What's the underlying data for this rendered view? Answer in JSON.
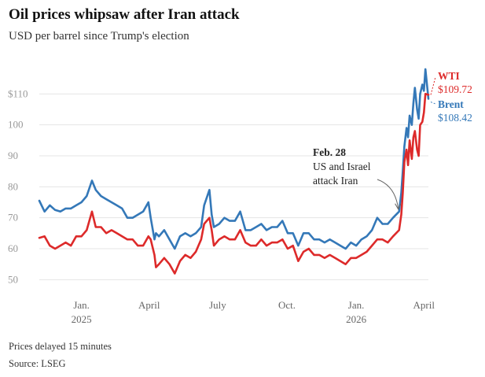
{
  "header": {
    "title": "Oil prices whipsaw after Iran attack",
    "subtitle": "USD per barrel since Trump's election"
  },
  "footer": {
    "note": "Prices delayed 15 minutes",
    "source": "Source: LSEG"
  },
  "colors": {
    "wti": "#dd2a2a",
    "brent": "#3478b8",
    "grid": "#e4e4e4"
  },
  "chart_data": {
    "type": "line",
    "title": "Oil prices whipsaw after Iran attack",
    "subtitle": "USD per barrel since Trump's election",
    "ylim": [
      45,
      120
    ],
    "y_ticks": [
      {
        "value": 50,
        "label": "50"
      },
      {
        "value": 60,
        "label": "60"
      },
      {
        "value": 70,
        "label": "70"
      },
      {
        "value": 80,
        "label": "80"
      },
      {
        "value": 90,
        "label": "90"
      },
      {
        "value": 100,
        "label": "100"
      },
      {
        "value": 110,
        "label": "$110"
      }
    ],
    "x_ticks": [
      {
        "date": "2025-01-01",
        "label": "Jan.",
        "sublabel": "2025"
      },
      {
        "date": "2025-04-01",
        "label": "April",
        "sublabel": ""
      },
      {
        "date": "2025-07-01",
        "label": "July",
        "sublabel": ""
      },
      {
        "date": "2025-10-01",
        "label": "Oct.",
        "sublabel": ""
      },
      {
        "date": "2026-01-01",
        "label": "Jan.",
        "sublabel": "2026"
      },
      {
        "date": "2026-04-01",
        "label": "April",
        "sublabel": ""
      }
    ],
    "xlim": [
      "2024-11-06",
      "2026-04-07"
    ],
    "grid": true,
    "annotations": [
      {
        "date": "2026-02-28",
        "value": 72,
        "title": "Feb. 28",
        "lines": [
          "US and Israel",
          "attack Iran"
        ]
      }
    ],
    "series": [
      {
        "name": "WTI",
        "last_label": "$109.72",
        "points": [
          [
            "2024-11-06",
            63.5
          ],
          [
            "2024-11-13",
            64
          ],
          [
            "2024-11-20",
            61
          ],
          [
            "2024-11-27",
            60
          ],
          [
            "2024-12-04",
            61
          ],
          [
            "2024-12-11",
            62
          ],
          [
            "2024-12-18",
            61
          ],
          [
            "2024-12-25",
            64
          ],
          [
            "2025-01-01",
            64
          ],
          [
            "2025-01-08",
            66
          ],
          [
            "2025-01-15",
            72
          ],
          [
            "2025-01-20",
            67
          ],
          [
            "2025-01-27",
            67
          ],
          [
            "2025-02-03",
            65
          ],
          [
            "2025-02-10",
            66
          ],
          [
            "2025-02-17",
            65
          ],
          [
            "2025-02-24",
            64
          ],
          [
            "2025-03-03",
            63
          ],
          [
            "2025-03-10",
            63
          ],
          [
            "2025-03-17",
            61
          ],
          [
            "2025-03-24",
            61
          ],
          [
            "2025-03-31",
            64
          ],
          [
            "2025-04-03",
            63
          ],
          [
            "2025-04-08",
            58
          ],
          [
            "2025-04-10",
            54
          ],
          [
            "2025-04-14",
            55
          ],
          [
            "2025-04-21",
            57
          ],
          [
            "2025-04-28",
            55
          ],
          [
            "2025-05-05",
            52
          ],
          [
            "2025-05-12",
            56
          ],
          [
            "2025-05-19",
            58
          ],
          [
            "2025-05-26",
            57
          ],
          [
            "2025-06-02",
            59
          ],
          [
            "2025-06-09",
            63
          ],
          [
            "2025-06-13",
            68
          ],
          [
            "2025-06-20",
            70
          ],
          [
            "2025-06-23",
            66
          ],
          [
            "2025-06-26",
            61
          ],
          [
            "2025-07-03",
            63
          ],
          [
            "2025-07-10",
            64
          ],
          [
            "2025-07-17",
            63
          ],
          [
            "2025-07-24",
            63
          ],
          [
            "2025-07-31",
            66
          ],
          [
            "2025-08-07",
            62
          ],
          [
            "2025-08-14",
            61
          ],
          [
            "2025-08-21",
            61
          ],
          [
            "2025-08-28",
            63
          ],
          [
            "2025-09-04",
            61
          ],
          [
            "2025-09-11",
            62
          ],
          [
            "2025-09-18",
            62
          ],
          [
            "2025-09-25",
            63
          ],
          [
            "2025-10-02",
            60
          ],
          [
            "2025-10-09",
            61
          ],
          [
            "2025-10-16",
            56
          ],
          [
            "2025-10-23",
            59
          ],
          [
            "2025-10-30",
            60
          ],
          [
            "2025-11-06",
            58
          ],
          [
            "2025-11-13",
            58
          ],
          [
            "2025-11-20",
            57
          ],
          [
            "2025-11-27",
            58
          ],
          [
            "2025-12-04",
            57
          ],
          [
            "2025-12-11",
            56
          ],
          [
            "2025-12-18",
            55
          ],
          [
            "2025-12-25",
            57
          ],
          [
            "2026-01-01",
            57
          ],
          [
            "2026-01-08",
            58
          ],
          [
            "2026-01-15",
            59
          ],
          [
            "2026-01-22",
            61
          ],
          [
            "2026-01-29",
            63
          ],
          [
            "2026-02-05",
            63
          ],
          [
            "2026-02-12",
            62
          ],
          [
            "2026-02-19",
            64
          ],
          [
            "2026-02-27",
            66
          ],
          [
            "2026-03-02",
            71
          ],
          [
            "2026-03-04",
            78
          ],
          [
            "2026-03-06",
            88
          ],
          [
            "2026-03-09",
            92
          ],
          [
            "2026-03-11",
            87
          ],
          [
            "2026-03-13",
            95
          ],
          [
            "2026-03-16",
            89
          ],
          [
            "2026-03-18",
            96
          ],
          [
            "2026-03-20",
            98
          ],
          [
            "2026-03-23",
            92
          ],
          [
            "2026-03-25",
            90
          ],
          [
            "2026-03-27",
            100
          ],
          [
            "2026-03-30",
            101
          ],
          [
            "2026-04-01",
            104
          ],
          [
            "2026-04-03",
            110
          ],
          [
            "2026-04-07",
            109.72
          ]
        ]
      },
      {
        "name": "Brent",
        "last_label": "$108.42",
        "points": [
          [
            "2024-11-06",
            75.5
          ],
          [
            "2024-11-13",
            72
          ],
          [
            "2024-11-20",
            74
          ],
          [
            "2024-11-27",
            72.5
          ],
          [
            "2024-12-04",
            72
          ],
          [
            "2024-12-11",
            73
          ],
          [
            "2024-12-18",
            73
          ],
          [
            "2024-12-25",
            74
          ],
          [
            "2025-01-01",
            75
          ],
          [
            "2025-01-08",
            77
          ],
          [
            "2025-01-15",
            82
          ],
          [
            "2025-01-20",
            79
          ],
          [
            "2025-01-27",
            77
          ],
          [
            "2025-02-03",
            76
          ],
          [
            "2025-02-10",
            75
          ],
          [
            "2025-02-17",
            74
          ],
          [
            "2025-02-24",
            73
          ],
          [
            "2025-03-03",
            70
          ],
          [
            "2025-03-10",
            70
          ],
          [
            "2025-03-17",
            71
          ],
          [
            "2025-03-24",
            72
          ],
          [
            "2025-03-31",
            75
          ],
          [
            "2025-04-03",
            70
          ],
          [
            "2025-04-08",
            63
          ],
          [
            "2025-04-10",
            65
          ],
          [
            "2025-04-14",
            64
          ],
          [
            "2025-04-21",
            66
          ],
          [
            "2025-04-28",
            63
          ],
          [
            "2025-05-05",
            60
          ],
          [
            "2025-05-12",
            64
          ],
          [
            "2025-05-19",
            65
          ],
          [
            "2025-05-26",
            64
          ],
          [
            "2025-06-02",
            65
          ],
          [
            "2025-06-09",
            67
          ],
          [
            "2025-06-13",
            74
          ],
          [
            "2025-06-20",
            79
          ],
          [
            "2025-06-23",
            71
          ],
          [
            "2025-06-26",
            67
          ],
          [
            "2025-07-03",
            68
          ],
          [
            "2025-07-10",
            70
          ],
          [
            "2025-07-17",
            69
          ],
          [
            "2025-07-24",
            69
          ],
          [
            "2025-07-31",
            72
          ],
          [
            "2025-08-07",
            66
          ],
          [
            "2025-08-14",
            66
          ],
          [
            "2025-08-21",
            67
          ],
          [
            "2025-08-28",
            68
          ],
          [
            "2025-09-04",
            66
          ],
          [
            "2025-09-11",
            67
          ],
          [
            "2025-09-18",
            67
          ],
          [
            "2025-09-25",
            69
          ],
          [
            "2025-10-02",
            65
          ],
          [
            "2025-10-09",
            65
          ],
          [
            "2025-10-16",
            61
          ],
          [
            "2025-10-23",
            65
          ],
          [
            "2025-10-30",
            65
          ],
          [
            "2025-11-06",
            63
          ],
          [
            "2025-11-13",
            63
          ],
          [
            "2025-11-20",
            62
          ],
          [
            "2025-11-27",
            63
          ],
          [
            "2025-12-04",
            62
          ],
          [
            "2025-12-11",
            61
          ],
          [
            "2025-12-18",
            60
          ],
          [
            "2025-12-25",
            62
          ],
          [
            "2026-01-01",
            61
          ],
          [
            "2026-01-08",
            63
          ],
          [
            "2026-01-15",
            64
          ],
          [
            "2026-01-22",
            66
          ],
          [
            "2026-01-29",
            70
          ],
          [
            "2026-02-05",
            68
          ],
          [
            "2026-02-12",
            68
          ],
          [
            "2026-02-19",
            70
          ],
          [
            "2026-02-27",
            72
          ],
          [
            "2026-03-02",
            78
          ],
          [
            "2026-03-04",
            85
          ],
          [
            "2026-03-06",
            93
          ],
          [
            "2026-03-09",
            99
          ],
          [
            "2026-03-11",
            96
          ],
          [
            "2026-03-13",
            103
          ],
          [
            "2026-03-16",
            100
          ],
          [
            "2026-03-18",
            107
          ],
          [
            "2026-03-20",
            112
          ],
          [
            "2026-03-23",
            105
          ],
          [
            "2026-03-25",
            102
          ],
          [
            "2026-03-27",
            110
          ],
          [
            "2026-03-30",
            113
          ],
          [
            "2026-04-01",
            111
          ],
          [
            "2026-04-03",
            118
          ],
          [
            "2026-04-07",
            108.42
          ]
        ]
      }
    ]
  }
}
